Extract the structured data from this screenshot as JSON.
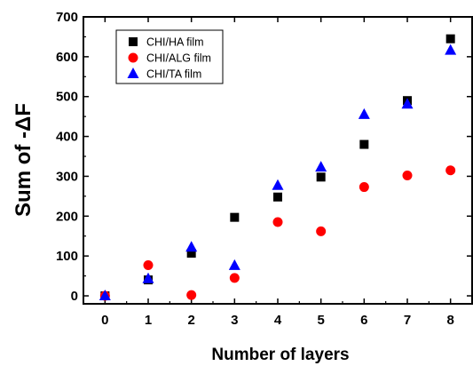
{
  "chart_data": {
    "type": "scatter",
    "title": "",
    "xlabel": "Number of layers",
    "ylabel": "Sum of -ΔF",
    "xlim": [
      -0.5,
      8.5
    ],
    "ylim": [
      -20,
      700
    ],
    "xticks": [
      0,
      1,
      2,
      3,
      4,
      5,
      6,
      7,
      8
    ],
    "yticks": [
      0,
      100,
      200,
      300,
      400,
      500,
      600,
      700
    ],
    "grid": false,
    "legend_position": "top-left",
    "x": [
      0,
      1,
      2,
      3,
      4,
      5,
      6,
      7,
      8
    ],
    "series": [
      {
        "name": "CHI/HA film",
        "marker": "square",
        "color": "#000000",
        "values": [
          0,
          40,
          107,
          197,
          248,
          298,
          380,
          490,
          645
        ]
      },
      {
        "name": "CHI/ALG film",
        "marker": "circle",
        "color": "#ff0000",
        "values": [
          0,
          77,
          2,
          45,
          185,
          162,
          273,
          302,
          315
        ]
      },
      {
        "name": "CHI/TA film",
        "marker": "triangle",
        "color": "#0000ff",
        "values": [
          0,
          43,
          122,
          76,
          277,
          323,
          455,
          481,
          616
        ]
      }
    ]
  }
}
